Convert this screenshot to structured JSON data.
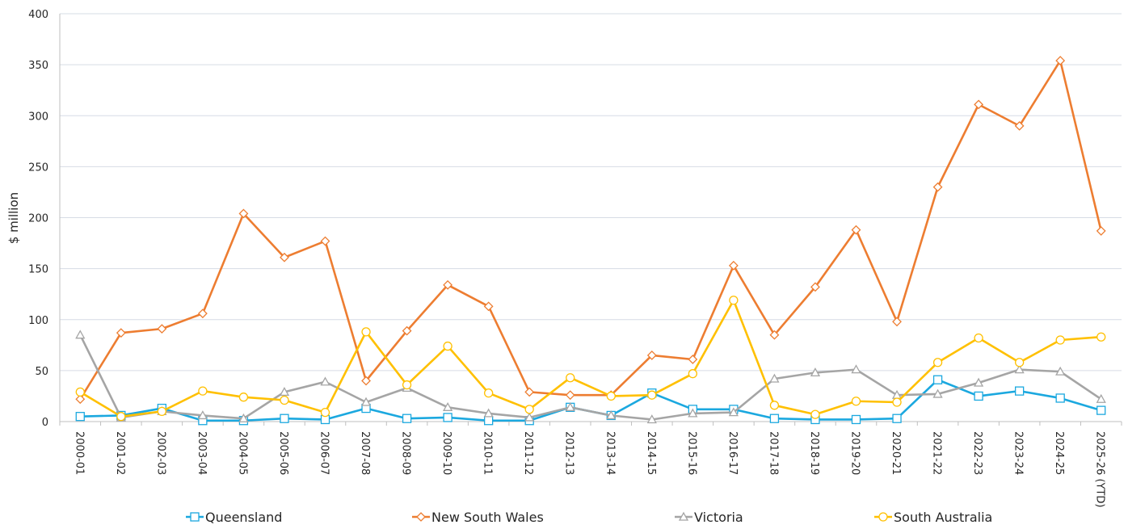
{
  "chart_data": {
    "type": "line",
    "title": "",
    "xlabel": "",
    "ylabel": "$ million",
    "ylim": [
      0,
      400
    ],
    "yticks": [
      0,
      50,
      100,
      150,
      200,
      250,
      300,
      350,
      400
    ],
    "grid": true,
    "legend_position": "bottom",
    "categories": [
      "2000-01",
      "2001-02",
      "2002-03",
      "2003-04",
      "2004-05",
      "2005-06",
      "2006-07",
      "2007-08",
      "2008-09",
      "2009-10",
      "2010-11",
      "2011-12",
      "2012-13",
      "2013-14",
      "2014-15",
      "2015-16",
      "2016-17",
      "2017-18",
      "2018-19",
      "2019-20",
      "2020-21",
      "2021-22",
      "2022-23",
      "2023-24",
      "2024-25",
      "2025-26 (YTD)"
    ],
    "series": [
      {
        "name": "Queensland",
        "color": "#1BA8DF",
        "marker": "square",
        "values": [
          5,
          6,
          13,
          1,
          1,
          3,
          2,
          13,
          3,
          4,
          1,
          1,
          14,
          6,
          28,
          12,
          12,
          3,
          2,
          2,
          3,
          41,
          25,
          30,
          23,
          11
        ]
      },
      {
        "name": "New South Wales",
        "color": "#ED7D31",
        "marker": "diamond",
        "values": [
          22,
          87,
          91,
          106,
          204,
          161,
          177,
          40,
          89,
          134,
          113,
          29,
          26,
          26,
          65,
          61,
          153,
          85,
          132,
          188,
          98,
          230,
          311,
          290,
          354,
          187
        ]
      },
      {
        "name": "Victoria",
        "color": "#A5A5A5",
        "marker": "triangle",
        "values": [
          85,
          4,
          10,
          6,
          3,
          29,
          39,
          19,
          33,
          14,
          8,
          4,
          14,
          6,
          2,
          8,
          9,
          42,
          48,
          51,
          26,
          27,
          38,
          51,
          49,
          22
        ]
      },
      {
        "name": "South Australia",
        "color": "#FFC000",
        "marker": "circle",
        "values": [
          29,
          5,
          10,
          30,
          24,
          21,
          9,
          88,
          36,
          74,
          28,
          12,
          43,
          25,
          26,
          47,
          119,
          16,
          7,
          20,
          19,
          58,
          82,
          58,
          80,
          83
        ]
      }
    ]
  }
}
